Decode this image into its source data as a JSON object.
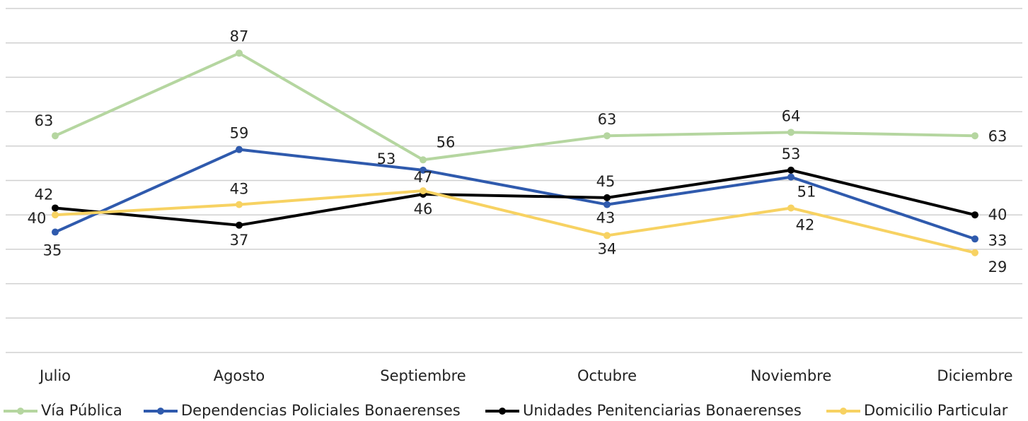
{
  "chart_data": {
    "type": "line",
    "categories": [
      "Julio",
      "Agosto",
      "Septiembre",
      "Octubre",
      "Noviembre",
      "Diciembre"
    ],
    "series": [
      {
        "name": "Vía Pública",
        "color": "#b5d6a0",
        "values": [
          63,
          87,
          56,
          63,
          64,
          63
        ]
      },
      {
        "name": "Dependencias Policiales Bonaerenses",
        "color": "#2f5aad",
        "values": [
          35,
          59,
          53,
          43,
          51,
          33
        ]
      },
      {
        "name": "Unidades Penitenciarias Bonaerenses",
        "color": "#000000",
        "values": [
          42,
          37,
          46,
          45,
          53,
          40
        ]
      },
      {
        "name": "Domicilio Particular",
        "color": "#f7d262",
        "values": [
          40,
          43,
          47,
          34,
          42,
          29
        ]
      }
    ],
    "ylim": [
      0,
      100
    ],
    "yticks": [
      0,
      10,
      20,
      30,
      40,
      50,
      60,
      70,
      80,
      90,
      100
    ],
    "grid": true,
    "legend": "bottom"
  }
}
